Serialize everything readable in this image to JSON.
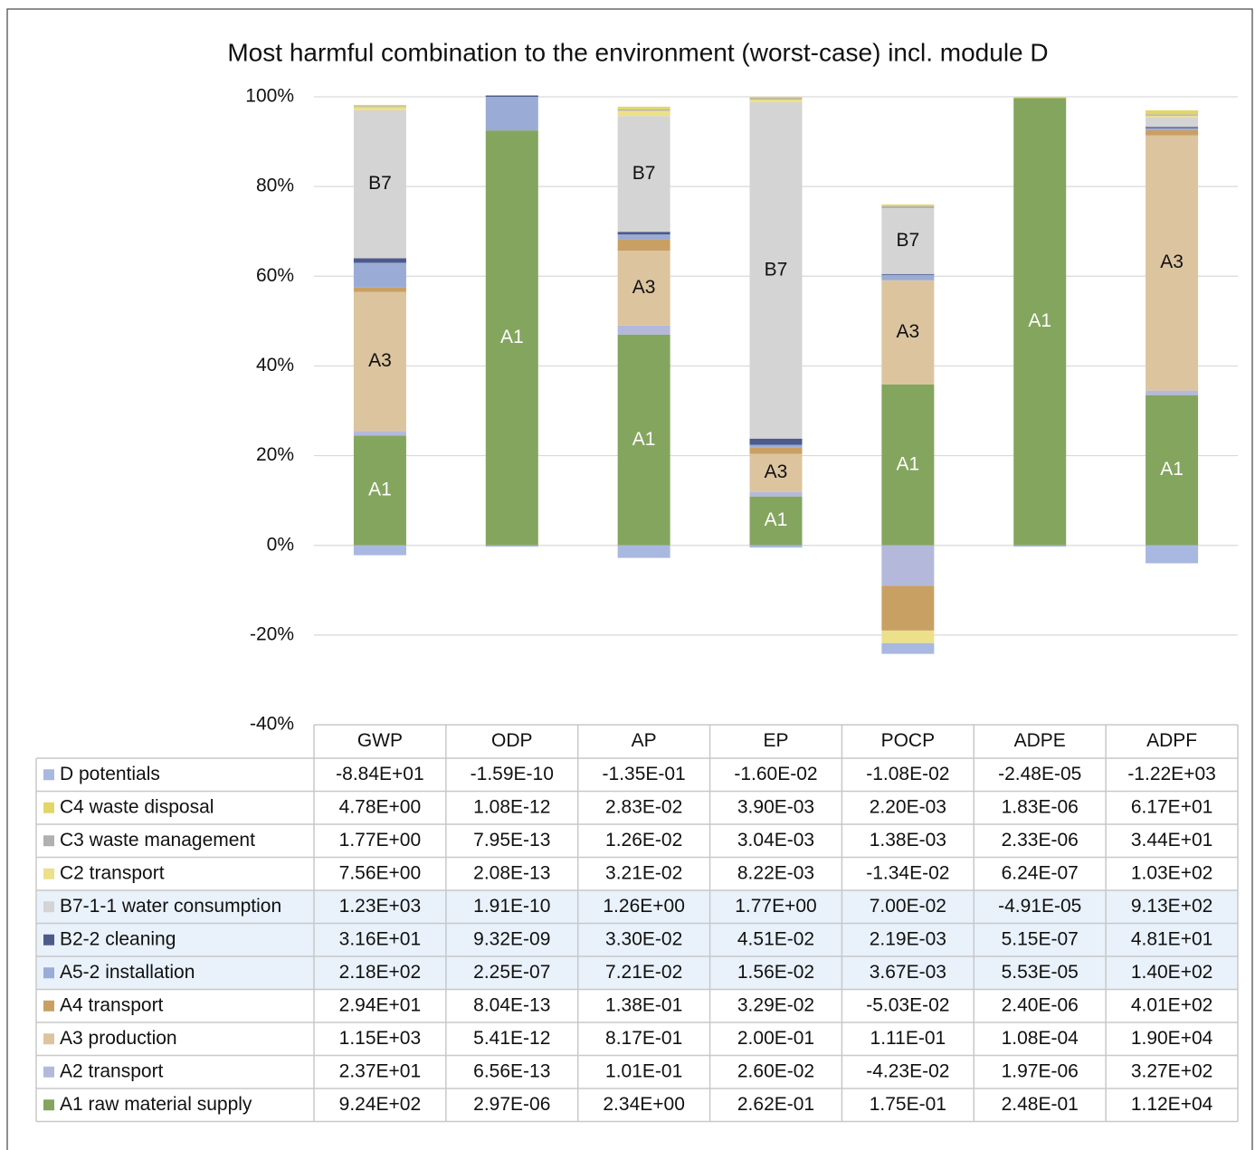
{
  "chart_data": {
    "type": "stacked_bar",
    "title": "Most harmful combination to the environment (worst-case) incl. module D",
    "categories": [
      "GWP",
      "ODP",
      "AP",
      "EP",
      "POCP",
      "ADPE",
      "ADPF"
    ],
    "ylim": [
      -40,
      100
    ],
    "yticks": [
      {
        "value": -40,
        "label": "-40%"
      },
      {
        "value": -20,
        "label": "-20%"
      },
      {
        "value": 0,
        "label": "0%"
      },
      {
        "value": 20,
        "label": "20%"
      },
      {
        "value": 40,
        "label": "40%"
      },
      {
        "value": 60,
        "label": "60%"
      },
      {
        "value": 80,
        "label": "80%"
      },
      {
        "value": 100,
        "label": "100%"
      }
    ],
    "grid": true,
    "series": [
      {
        "name": "D potentials",
        "color": "#a9b8e0",
        "values": [
          -2.2,
          -0.3,
          -2.8,
          -0.5,
          -2.4,
          -0.3,
          -4
        ],
        "table_values": [
          "-8.84E+01",
          "-1.59E-10",
          "-1.35E-01",
          "-1.60E-02",
          "-1.08E-02",
          "-2.48E-05",
          "-1.22E+03"
        ]
      },
      {
        "name": "C4 waste disposal",
        "color": "#e3d56a",
        "values": [
          0.3,
          0,
          0.6,
          0.3,
          0.4,
          0.2,
          0.9
        ],
        "table_values": [
          "4.78E+00",
          "1.08E-12",
          "2.83E-02",
          "3.90E-03",
          "2.20E-03",
          "1.83E-06",
          "6.17E+01"
        ]
      },
      {
        "name": "C3 waste management",
        "color": "#b0b0b0",
        "values": [
          0.2,
          0,
          0.3,
          0.3,
          0.4,
          0,
          0.3
        ],
        "table_values": [
          "1.77E+00",
          "7.95E-13",
          "1.26E-02",
          "3.04E-03",
          "1.38E-03",
          "2.33E-06",
          "3.44E+01"
        ]
      },
      {
        "name": "C2 transport",
        "color": "#ece08a",
        "values": [
          0.7,
          0,
          1.2,
          0.6,
          -2.8,
          0,
          0.3
        ],
        "table_values": [
          "7.56E+00",
          "2.08E-13",
          "3.21E-02",
          "8.22E-03",
          "-1.34E-02",
          "6.24E-07",
          "1.03E+02"
        ]
      },
      {
        "name": "B7-1-1 water consumption",
        "color": "#d4d4d4",
        "values": [
          33,
          0,
          25.8,
          75,
          14.7,
          0,
          2.2
        ],
        "table_values": [
          "1.23E+03",
          "1.91E-10",
          "1.26E+00",
          "1.77E+00",
          "7.00E-02",
          "-4.91E-05",
          "9.13E+02"
        ],
        "inner_labels": [
          "B7",
          null,
          "B7",
          "B7",
          "B7",
          null,
          null
        ],
        "highlighted": true
      },
      {
        "name": "B2-2 cleaning",
        "color": "#4d5a8c",
        "values": [
          1,
          0.3,
          0.6,
          1.4,
          0.2,
          0,
          0.3
        ],
        "table_values": [
          "3.16E+01",
          "9.32E-09",
          "3.30E-02",
          "4.51E-02",
          "2.19E-03",
          "5.15E-07",
          "4.81E+01"
        ],
        "highlighted": true
      },
      {
        "name": "A5-2 installation",
        "color": "#9aabd6",
        "values": [
          5.5,
          7.5,
          1,
          0.6,
          1.2,
          0,
          0.4
        ],
        "table_values": [
          "2.18E+02",
          "2.25E-07",
          "7.21E-02",
          "1.56E-02",
          "3.67E-03",
          "5.53E-05",
          "1.40E+02"
        ],
        "highlighted": true
      },
      {
        "name": "A4 transport",
        "color": "#c9a064",
        "values": [
          1,
          0,
          2.6,
          1.4,
          -10,
          0,
          1.2
        ],
        "table_values": [
          "2.94E+01",
          "8.04E-13",
          "1.38E-01",
          "3.29E-02",
          "-5.03E-02",
          "2.40E-06",
          "4.01E+02"
        ]
      },
      {
        "name": "A3 production",
        "color": "#dcc49e",
        "values": [
          31,
          0,
          16.7,
          8.5,
          23.2,
          0,
          56.9
        ],
        "table_values": [
          "1.15E+03",
          "5.41E-12",
          "8.17E-01",
          "2.00E-01",
          "1.11E-01",
          "1.08E-04",
          "1.90E+04"
        ],
        "inner_labels": [
          "A3",
          null,
          "A3",
          "A3",
          "A3",
          null,
          "A3"
        ]
      },
      {
        "name": "A2 transport",
        "color": "#b4b9dc",
        "values": [
          1,
          0,
          2,
          1,
          -9,
          0,
          1
        ],
        "table_values": [
          "2.37E+01",
          "6.56E-13",
          "1.01E-01",
          "2.60E-02",
          "-4.23E-02",
          "1.97E-06",
          "3.27E+02"
        ]
      },
      {
        "name": "A1 raw material supply",
        "color": "#84a55e",
        "values": [
          24.5,
          92.5,
          47,
          10.9,
          35.9,
          99.7,
          33.5
        ],
        "table_values": [
          "9.24E+02",
          "2.97E-06",
          "2.34E+00",
          "2.62E-01",
          "1.75E-01",
          "2.48E-01",
          "1.12E+04"
        ],
        "inner_labels": [
          "A1",
          "A1",
          "A1",
          "A1",
          "A1",
          "A1",
          "A1"
        ],
        "inner_label_color": "#ffffff"
      }
    ]
  }
}
